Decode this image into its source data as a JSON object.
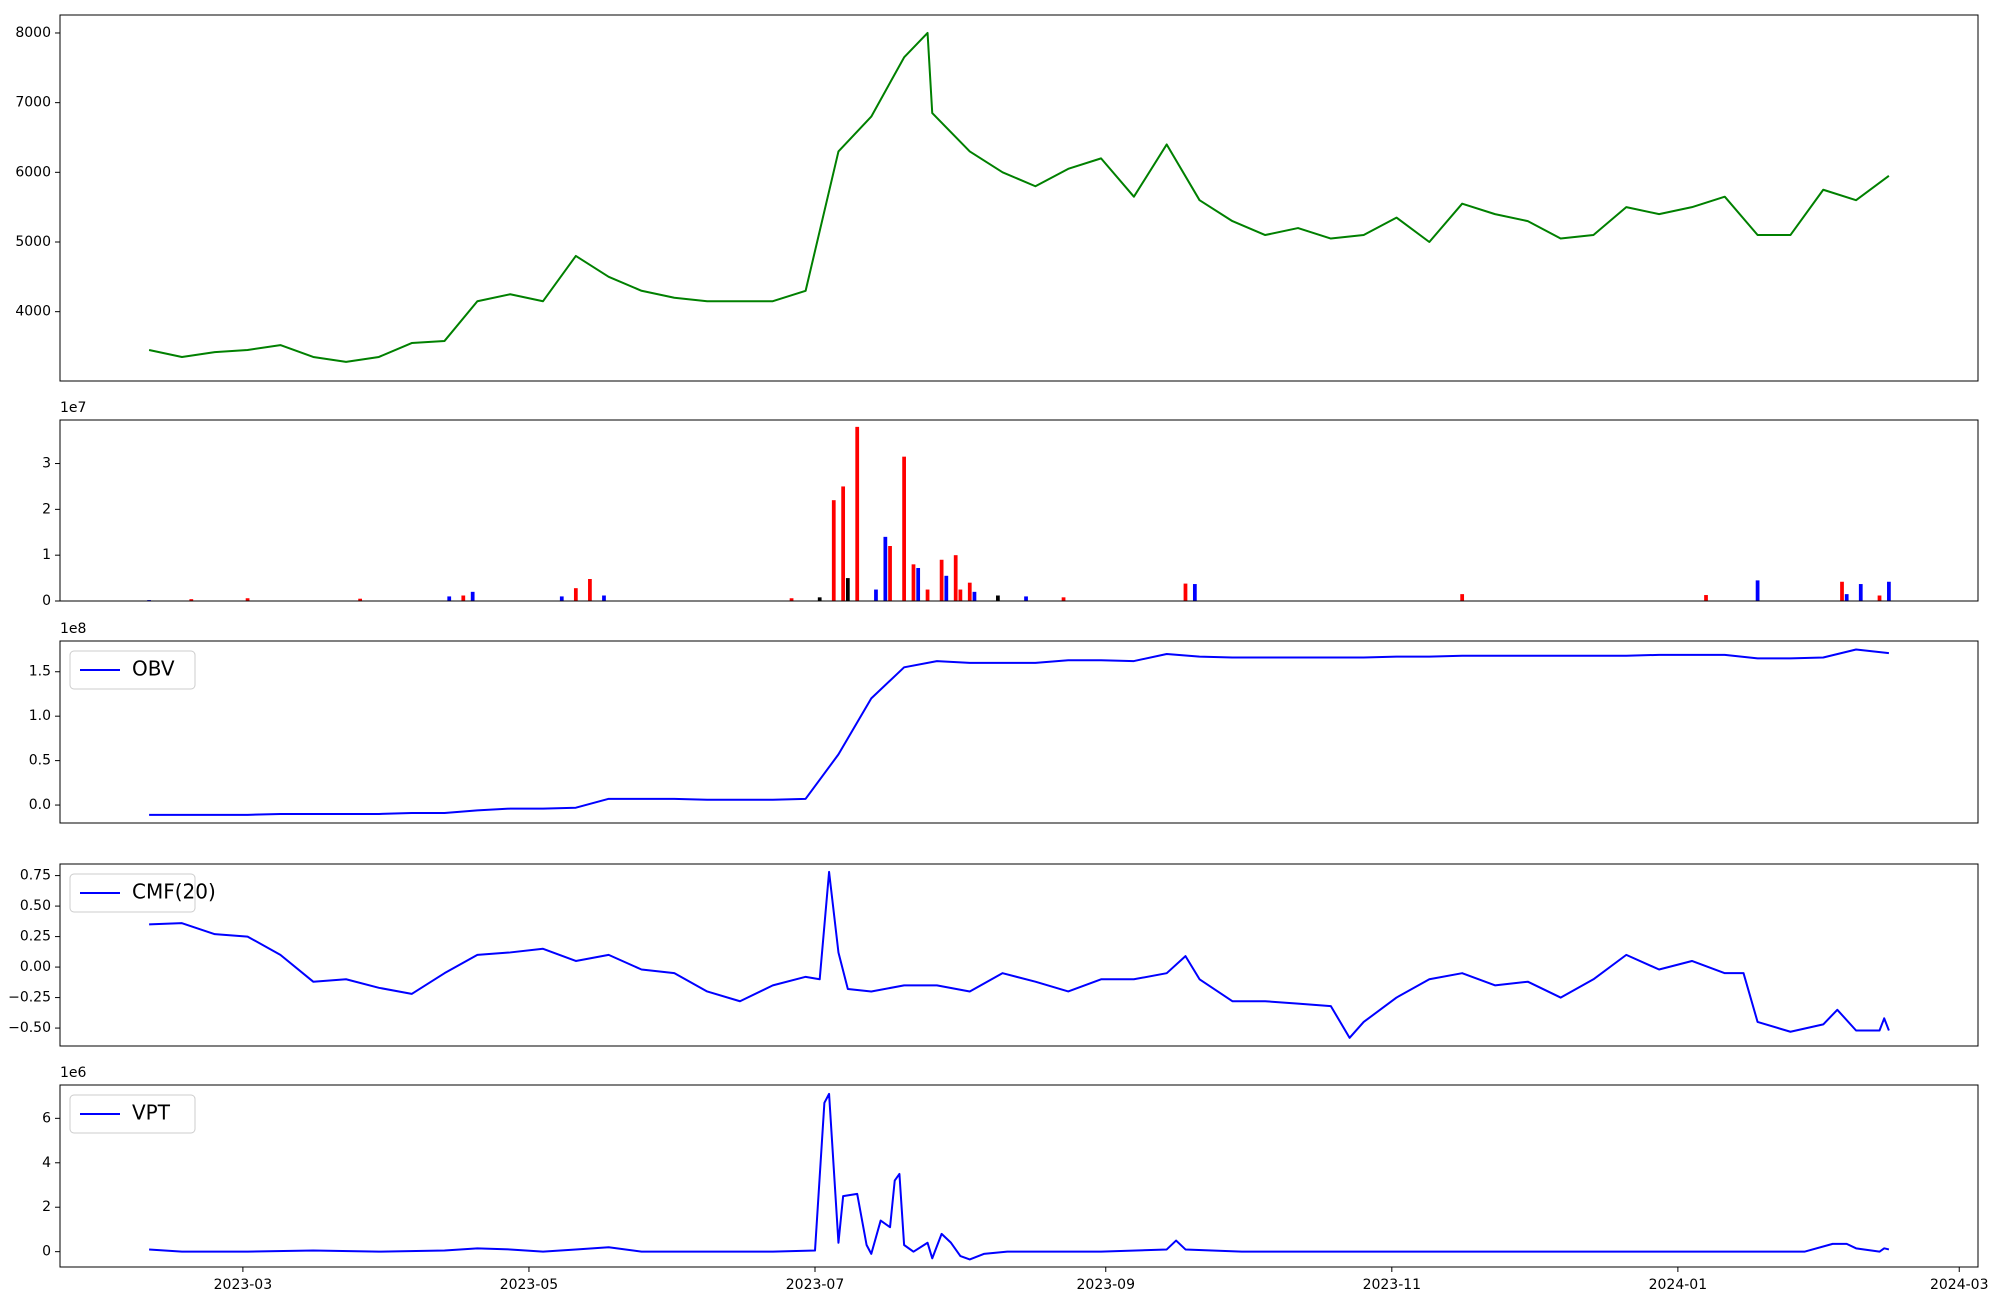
{
  "chart_data": [
    {
      "type": "line",
      "x": [
        19397,
        19404,
        19411,
        19418,
        19425,
        19432,
        19439,
        19446,
        19453,
        19460,
        19467,
        19474,
        19481,
        19488,
        19495,
        19502,
        19509,
        19516,
        19523,
        19530,
        19537,
        19544,
        19551,
        19558,
        19563,
        19564,
        19572,
        19579,
        19586,
        19593,
        19600,
        19607,
        19614,
        19621,
        19628,
        19635,
        19642,
        19649,
        19656,
        19663,
        19670,
        19677,
        19684,
        19691,
        19698,
        19705,
        19712,
        19719,
        19726,
        19733,
        19740,
        19747,
        19754,
        19761,
        19768
      ],
      "values": [
        3450,
        3350,
        3420,
        3450,
        3520,
        3350,
        3280,
        3350,
        3550,
        3580,
        4150,
        4250,
        4150,
        4800,
        4500,
        4300,
        4200,
        4150,
        4150,
        4150,
        4300,
        6300,
        6800,
        7650,
        8000,
        6850,
        6300,
        6000,
        5800,
        6050,
        6200,
        5650,
        6400,
        5600,
        5300,
        5100,
        5200,
        5050,
        5100,
        5350,
        5000,
        5550,
        5400,
        5300,
        5050,
        5100,
        5500,
        5400,
        5500,
        5650,
        5100,
        5100,
        5750,
        5600,
        5950
      ],
      "color": "#008000",
      "xlim": [
        19378,
        19787
      ],
      "ylim": [
        3005,
        8258
      ],
      "yticks": [
        4000,
        5000,
        6000,
        7000,
        8000
      ]
    },
    {
      "type": "bar",
      "y_offset": "1e7",
      "x": [
        19397,
        19406,
        19418,
        19442,
        19461,
        19464,
        19466,
        19485,
        19488,
        19491,
        19494,
        19534,
        19540,
        19543,
        19545,
        19546,
        19548,
        19552,
        19554,
        19555,
        19558,
        19560,
        19561,
        19563,
        19566,
        19567,
        19569,
        19570,
        19572,
        19573,
        19578,
        19584,
        19592,
        19618,
        19620,
        19677,
        19729,
        19740,
        19758,
        19759,
        19762,
        19766,
        19768
      ],
      "values": [
        0.02,
        0.04,
        0.06,
        0.05,
        0.1,
        0.12,
        0.2,
        0.1,
        0.28,
        0.48,
        0.12,
        0.06,
        0.08,
        2.2,
        2.5,
        0.5,
        3.8,
        0.25,
        1.4,
        1.2,
        3.15,
        0.8,
        0.72,
        0.25,
        0.9,
        0.55,
        1.0,
        0.25,
        0.4,
        0.2,
        0.12,
        0.1,
        0.08,
        0.38,
        0.37,
        0.15,
        0.13,
        0.45,
        0.42,
        0.15,
        0.37,
        0.12,
        0.42
      ],
      "colors": [
        "#0000ff",
        "#ff0000",
        "#ff0000",
        "#ff0000",
        "#0000ff",
        "#ff0000",
        "#0000ff",
        "#0000ff",
        "#ff0000",
        "#ff0000",
        "#0000ff",
        "#ff0000",
        "#000000",
        "#ff0000",
        "#ff0000",
        "#000000",
        "#ff0000",
        "#0000ff",
        "#0000ff",
        "#ff0000",
        "#ff0000",
        "#ff0000",
        "#0000ff",
        "#ff0000",
        "#ff0000",
        "#0000ff",
        "#ff0000",
        "#ff0000",
        "#ff0000",
        "#0000ff",
        "#000000",
        "#0000ff",
        "#ff0000",
        "#ff0000",
        "#0000ff",
        "#ff0000",
        "#ff0000",
        "#0000ff",
        "#ff0000",
        "#0000ff",
        "#0000ff",
        "#ff0000",
        "#0000ff"
      ],
      "xlim": [
        19378,
        19787
      ],
      "ylim": [
        0,
        3.95
      ],
      "yticks": [
        0,
        1,
        2,
        3
      ]
    },
    {
      "type": "line",
      "y_offset": "1e8",
      "legend": "upper left",
      "x": [
        19397,
        19404,
        19411,
        19418,
        19425,
        19432,
        19439,
        19446,
        19453,
        19460,
        19467,
        19474,
        19481,
        19488,
        19495,
        19502,
        19509,
        19516,
        19523,
        19530,
        19537,
        19544,
        19551,
        19558,
        19565,
        19572,
        19579,
        19586,
        19593,
        19600,
        19607,
        19614,
        19621,
        19628,
        19635,
        19642,
        19649,
        19656,
        19663,
        19670,
        19677,
        19684,
        19691,
        19698,
        19705,
        19712,
        19719,
        19726,
        19733,
        19740,
        19747,
        19754,
        19761,
        19768
      ],
      "series": [
        {
          "name": "OBV",
          "color": "#0000ff",
          "values": [
            -0.11,
            -0.11,
            -0.11,
            -0.11,
            -0.1,
            -0.1,
            -0.1,
            -0.1,
            -0.09,
            -0.09,
            -0.06,
            -0.04,
            -0.04,
            -0.03,
            0.07,
            0.07,
            0.07,
            0.06,
            0.06,
            0.06,
            0.07,
            0.57,
            1.2,
            1.55,
            1.62,
            1.6,
            1.6,
            1.6,
            1.63,
            1.63,
            1.62,
            1.7,
            1.67,
            1.66,
            1.66,
            1.66,
            1.66,
            1.66,
            1.67,
            1.67,
            1.68,
            1.68,
            1.68,
            1.68,
            1.68,
            1.68,
            1.69,
            1.69,
            1.69,
            1.65,
            1.65,
            1.66,
            1.75,
            1.71
          ]
        }
      ],
      "xlim": [
        19378,
        19787
      ],
      "ylim": [
        -0.202,
        1.846
      ],
      "yticks": [
        {
          "value": 0,
          "label": "0.0"
        },
        {
          "value": 0.5,
          "label": "0.5"
        },
        {
          "value": 1,
          "label": "1.0"
        },
        {
          "value": 1.5,
          "label": "1.5"
        }
      ]
    },
    {
      "type": "line",
      "legend": "upper left",
      "x": [
        19397,
        19404,
        19411,
        19418,
        19425,
        19432,
        19439,
        19446,
        19453,
        19460,
        19467,
        19474,
        19481,
        19488,
        19495,
        19502,
        19509,
        19516,
        19523,
        19530,
        19537,
        19540,
        19542,
        19544,
        19546,
        19551,
        19558,
        19565,
        19572,
        19579,
        19586,
        19593,
        19600,
        19607,
        19614,
        19618,
        19621,
        19628,
        19635,
        19642,
        19649,
        19653,
        19656,
        19663,
        19670,
        19677,
        19684,
        19691,
        19698,
        19705,
        19712,
        19719,
        19726,
        19733,
        19737,
        19740,
        19747,
        19754,
        19757,
        19761,
        19766,
        19767,
        19768
      ],
      "series": [
        {
          "name": "CMF(20)",
          "color": "#0000ff",
          "values": [
            0.35,
            0.36,
            0.27,
            0.25,
            0.1,
            -0.12,
            -0.1,
            -0.17,
            -0.22,
            -0.05,
            0.1,
            0.12,
            0.15,
            0.05,
            0.1,
            -0.02,
            -0.05,
            -0.2,
            -0.28,
            -0.15,
            -0.08,
            -0.1,
            0.78,
            0.12,
            -0.18,
            -0.2,
            -0.15,
            -0.15,
            -0.2,
            -0.05,
            -0.12,
            -0.2,
            -0.1,
            -0.1,
            -0.05,
            0.09,
            -0.1,
            -0.28,
            -0.28,
            -0.3,
            -0.32,
            -0.58,
            -0.45,
            -0.25,
            -0.1,
            -0.05,
            -0.15,
            -0.12,
            -0.25,
            -0.1,
            0.1,
            -0.02,
            0.05,
            -0.05,
            -0.05,
            -0.45,
            -0.53,
            -0.47,
            -0.35,
            -0.52,
            -0.52,
            -0.42,
            -0.52
          ]
        }
      ],
      "xlim": [
        19378,
        19787
      ],
      "ylim": [
        -0.647,
        0.845
      ],
      "yticks": [
        {
          "value": -0.5,
          "label": "−0.50"
        },
        {
          "value": -0.25,
          "label": "−0.25"
        },
        {
          "value": 0,
          "label": "0.00"
        },
        {
          "value": 0.25,
          "label": "0.25"
        },
        {
          "value": 0.5,
          "label": "0.50"
        },
        {
          "value": 0.75,
          "label": "0.75"
        }
      ]
    },
    {
      "type": "line",
      "y_offset": "1e6",
      "legend": "upper left",
      "x": [
        19397,
        19404,
        19418,
        19432,
        19446,
        19460,
        19467,
        19474,
        19481,
        19488,
        19495,
        19502,
        19516,
        19530,
        19539,
        19541,
        19542,
        19544,
        19545,
        19548,
        19550,
        19551,
        19553,
        19555,
        19556,
        19557,
        19558,
        19560,
        19563,
        19564,
        19566,
        19568,
        19570,
        19572,
        19575,
        19580,
        19600,
        19614,
        19616,
        19618,
        19630,
        19660,
        19700,
        19740,
        19750,
        19756,
        19759,
        19761,
        19766,
        19767,
        19768
      ],
      "series": [
        {
          "name": "VPT",
          "color": "#0000ff",
          "values": [
            0.1,
            0,
            0,
            0.05,
            0,
            0.05,
            0.15,
            0.1,
            0,
            0.1,
            0.2,
            0,
            0,
            0,
            0.05,
            6.7,
            7.1,
            0.4,
            2.5,
            2.6,
            0.3,
            -0.1,
            1.4,
            1.1,
            3.2,
            3.5,
            0.3,
            0,
            0.4,
            -0.3,
            0.8,
            0.4,
            -0.2,
            -0.35,
            -0.1,
            0,
            0,
            0.1,
            0.5,
            0.1,
            0,
            0,
            0,
            0,
            0,
            0.35,
            0.35,
            0.15,
            0,
            0.15,
            0.1
          ]
        }
      ],
      "xlim": [
        19378,
        19787
      ],
      "ylim": [
        -0.69,
        7.5
      ],
      "yticks": [
        0,
        2,
        4,
        6
      ],
      "xticks": [
        {
          "value": 19417,
          "label": "2023-03"
        },
        {
          "value": 19478,
          "label": "2023-05"
        },
        {
          "value": 19539,
          "label": "2023-07"
        },
        {
          "value": 19601,
          "label": "2023-09"
        },
        {
          "value": 19662,
          "label": "2023-11"
        },
        {
          "value": 19723,
          "label": "2024-01"
        },
        {
          "value": 19783,
          "label": "2024-03"
        }
      ]
    }
  ]
}
